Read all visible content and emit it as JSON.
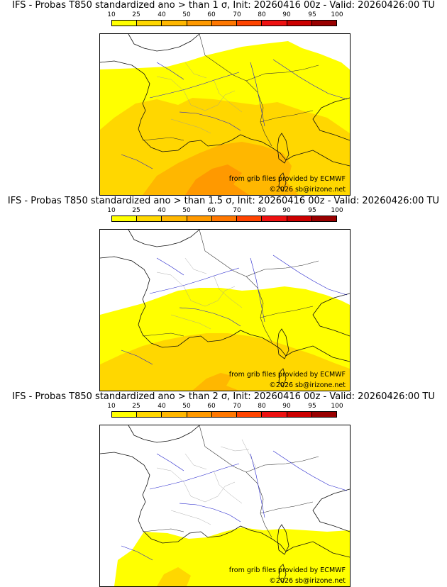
{
  "colorbar": {
    "ticks": [
      "10",
      "25",
      "40",
      "50",
      "60",
      "70",
      "80",
      "90",
      "95",
      "100"
    ],
    "colors": [
      "#ffff00",
      "#ffd700",
      "#ffb700",
      "#ff9900",
      "#ff7700",
      "#ff4400",
      "#ee1111",
      "#cc0000",
      "#990000"
    ]
  },
  "maps": [
    {
      "title": "IFS - Probas T850  standardized ano > than 1 σ, Init: 20260416 00z - Valid: 20260426:00 TU",
      "credit": "from grib files provided by ECMWF",
      "copyright": "©2026 sb@irizone.net"
    },
    {
      "title": "IFS - Probas T850  standardized ano > than 1.5 σ, Init: 20260416 00z - Valid: 20260426:00 TU",
      "credit": "from grib files provided by ECMWF",
      "copyright": "©2026 sb@irizone.net"
    },
    {
      "title": "IFS - Probas T850  standardized ano > than 2 σ, Init: 20260416 00z - Valid: 20260426:00 TU",
      "credit": "from grib files provided by ECMWF",
      "copyright": "©2026 sb@irizone.net"
    }
  ],
  "map_colors": {
    "coast": "#111111",
    "river": "#2222cc",
    "borders": "#999999"
  }
}
